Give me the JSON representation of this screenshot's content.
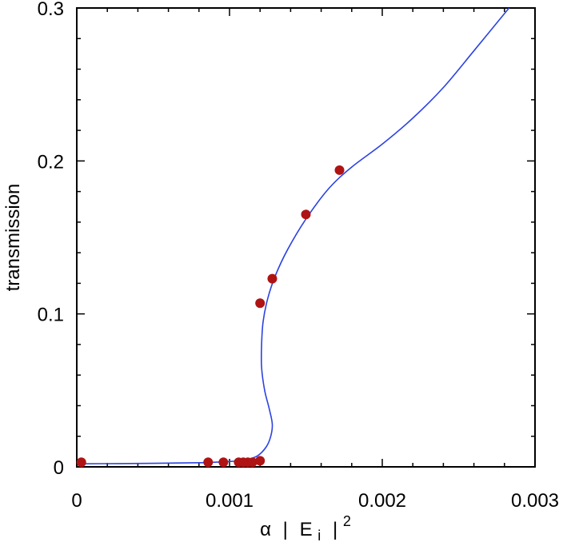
{
  "chart_data": {
    "type": "scatter",
    "xlabel": {
      "symbol": "α",
      "bar_left": "|",
      "var": "E",
      "sub": "i",
      "bar_right": "|",
      "sup": "2"
    },
    "ylabel": "transmission",
    "xlim": [
      0,
      0.003
    ],
    "ylim": [
      0,
      0.3
    ],
    "x_ticks": [
      0,
      0.001,
      0.002,
      0.003
    ],
    "x_tick_labels": [
      "0",
      "0.001",
      "0.002",
      "0.003"
    ],
    "x_minor_step": 0.0002,
    "y_ticks": [
      0,
      0.1,
      0.2,
      0.3
    ],
    "y_tick_labels": [
      "0",
      "0.1",
      "0.2",
      "0.3"
    ],
    "y_minor_step": 0.02,
    "grid": false,
    "legend": false,
    "series": [
      {
        "kind": "points",
        "color": "#b01313",
        "points": [
          {
            "x": 3e-05,
            "y": 0.003
          },
          {
            "x": 0.00086,
            "y": 0.003
          },
          {
            "x": 0.00096,
            "y": 0.003
          },
          {
            "x": 0.00106,
            "y": 0.003
          },
          {
            "x": 0.00109,
            "y": 0.003
          },
          {
            "x": 0.00112,
            "y": 0.003
          },
          {
            "x": 0.00115,
            "y": 0.003
          },
          {
            "x": 0.0012,
            "y": 0.004
          },
          {
            "x": 0.0012,
            "y": 0.107
          },
          {
            "x": 0.00128,
            "y": 0.123
          },
          {
            "x": 0.0015,
            "y": 0.165
          },
          {
            "x": 0.00172,
            "y": 0.194
          }
        ]
      },
      {
        "kind": "line",
        "color": "#2c43e0",
        "points": [
          {
            "x": 0.0,
            "y": 0.002
          },
          {
            "x": 0.0005,
            "y": 0.0023
          },
          {
            "x": 0.0008,
            "y": 0.0027
          },
          {
            "x": 0.001,
            "y": 0.0035
          },
          {
            "x": 0.0011,
            "y": 0.0045
          },
          {
            "x": 0.00118,
            "y": 0.007
          },
          {
            "x": 0.00124,
            "y": 0.013
          },
          {
            "x": 0.00127,
            "y": 0.02
          },
          {
            "x": 0.00128,
            "y": 0.028
          },
          {
            "x": 0.00126,
            "y": 0.038
          },
          {
            "x": 0.00123,
            "y": 0.05
          },
          {
            "x": 0.00121,
            "y": 0.065
          },
          {
            "x": 0.00121,
            "y": 0.08
          },
          {
            "x": 0.00122,
            "y": 0.095
          },
          {
            "x": 0.00125,
            "y": 0.11
          },
          {
            "x": 0.0013,
            "y": 0.125
          },
          {
            "x": 0.00138,
            "y": 0.142
          },
          {
            "x": 0.0015,
            "y": 0.162
          },
          {
            "x": 0.00165,
            "y": 0.182
          },
          {
            "x": 0.0018,
            "y": 0.196
          },
          {
            "x": 0.002,
            "y": 0.211
          },
          {
            "x": 0.0022,
            "y": 0.228
          },
          {
            "x": 0.0024,
            "y": 0.248
          },
          {
            "x": 0.0026,
            "y": 0.272
          },
          {
            "x": 0.00283,
            "y": 0.3
          }
        ]
      }
    ]
  }
}
